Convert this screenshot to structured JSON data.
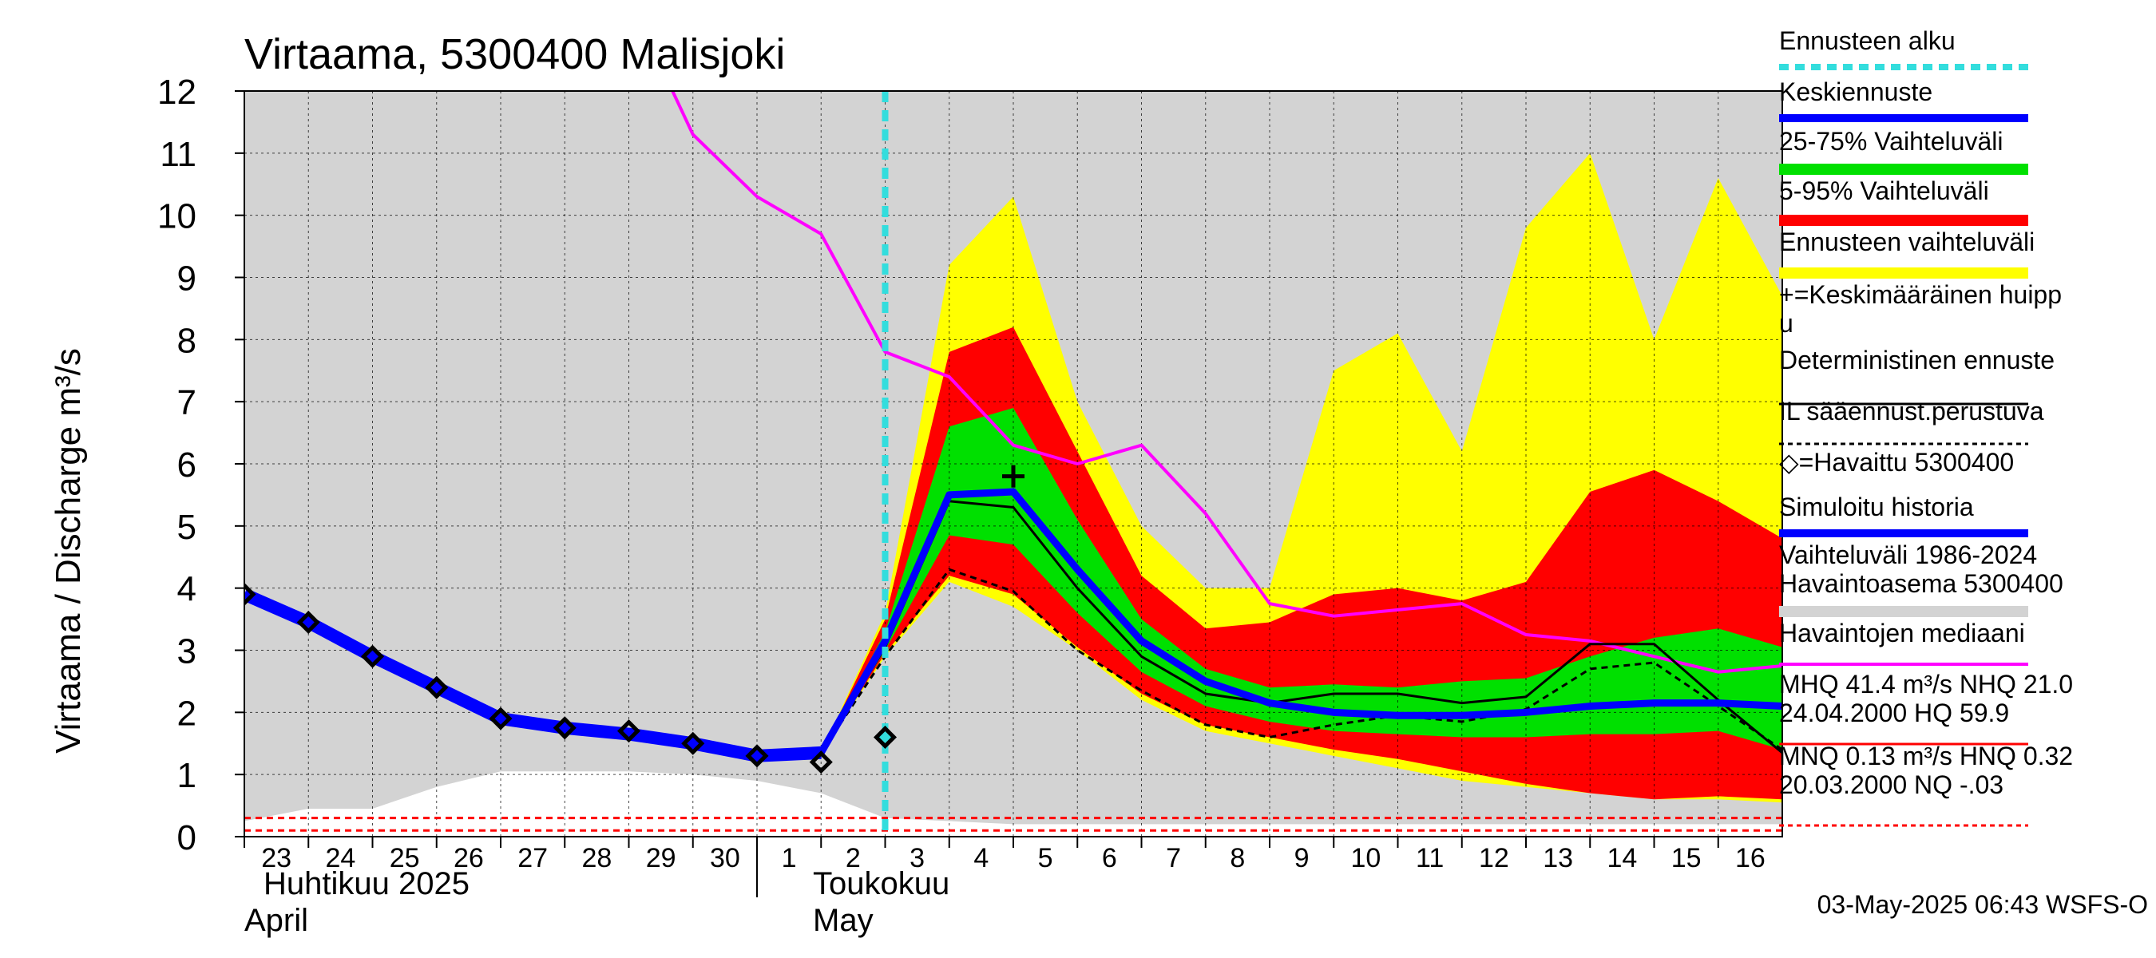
{
  "chart_data": {
    "type": "line",
    "title": "Virtaama, 5300400 Malisjoki",
    "ylabel": "Virtaama / Discharge    m³/s",
    "ylim": [
      0,
      12
    ],
    "yticks": [
      "0",
      "1",
      "2",
      "3",
      "4",
      "5",
      "6",
      "7",
      "8",
      "9",
      "10",
      "11",
      "12"
    ],
    "grid": true,
    "legend_position": "right",
    "x_tick_labels": [
      "23",
      "24",
      "25",
      "26",
      "27",
      "28",
      "29",
      "30",
      "1",
      "2",
      "3",
      "4",
      "5",
      "6",
      "7",
      "8",
      "9",
      "10",
      "11",
      "12",
      "13",
      "14",
      "15",
      "16"
    ],
    "month_labels": {
      "april_fi": "Huhtikuu  2025",
      "april_en": "April",
      "may_fi": "Toukokuu",
      "may_en": "May"
    },
    "x_day_index_note": "index 0 = 23 Apr, index 10 = 3 May",
    "forecast_start_index": 10,
    "series": {
      "history_range_upper": [
        12.0,
        12.0,
        12.0,
        12.0,
        12.0,
        12.0,
        12.0,
        12.0,
        12.0,
        12.0,
        12.0,
        12.0,
        12.0,
        12.0,
        12.0,
        12.0,
        12.0,
        12.0,
        12.0,
        12.0,
        12.0,
        12.0,
        12.0,
        12.0,
        12.0
      ],
      "history_range_lower": [
        0.25,
        0.45,
        0.45,
        0.8,
        1.05,
        1.05,
        1.05,
        1.0,
        0.9,
        0.7,
        0.3,
        0.25,
        0.2,
        0.2,
        0.2,
        0.2,
        0.2,
        0.2,
        0.2,
        0.2,
        0.2,
        0.2,
        0.2,
        0.2,
        0.2
      ],
      "ens_max": [
        null,
        null,
        null,
        null,
        null,
        null,
        null,
        null,
        null,
        1.35,
        3.6,
        9.2,
        10.3,
        7.0,
        5.0,
        4.0,
        4.0,
        7.5,
        8.1,
        6.2,
        9.8,
        11.0,
        8.0,
        10.6,
        8.7
      ],
      "ens_min": [
        null,
        null,
        null,
        null,
        null,
        null,
        null,
        null,
        null,
        1.35,
        2.9,
        4.1,
        3.7,
        3.0,
        2.2,
        1.7,
        1.5,
        1.3,
        1.1,
        0.9,
        0.8,
        0.7,
        0.6,
        0.6,
        0.55
      ],
      "p95": [
        null,
        null,
        null,
        null,
        null,
        null,
        null,
        null,
        null,
        1.35,
        3.5,
        7.8,
        8.2,
        6.2,
        4.2,
        3.35,
        3.45,
        3.9,
        4.0,
        3.8,
        4.1,
        5.55,
        5.9,
        5.4,
        4.8
      ],
      "p5": [
        null,
        null,
        null,
        null,
        null,
        null,
        null,
        null,
        null,
        1.35,
        2.95,
        4.2,
        3.9,
        3.05,
        2.3,
        1.8,
        1.6,
        1.4,
        1.25,
        1.05,
        0.85,
        0.7,
        0.6,
        0.65,
        0.6
      ],
      "p75": [
        null,
        null,
        null,
        null,
        null,
        null,
        null,
        null,
        null,
        1.35,
        3.3,
        6.6,
        6.9,
        5.1,
        3.5,
        2.7,
        2.4,
        2.45,
        2.4,
        2.5,
        2.55,
        2.9,
        3.2,
        3.35,
        3.05
      ],
      "p25": [
        null,
        null,
        null,
        null,
        null,
        null,
        null,
        null,
        null,
        1.35,
        3.0,
        4.85,
        4.7,
        3.6,
        2.65,
        2.1,
        1.85,
        1.7,
        1.65,
        1.6,
        1.6,
        1.65,
        1.65,
        1.7,
        1.4
      ],
      "mean_forecast": [
        null,
        null,
        null,
        null,
        null,
        null,
        null,
        null,
        null,
        1.35,
        3.15,
        5.5,
        5.55,
        4.3,
        3.15,
        2.5,
        2.15,
        2.0,
        1.95,
        1.95,
        2.0,
        2.1,
        2.15,
        2.15,
        2.1
      ],
      "deterministic": [
        null,
        null,
        null,
        null,
        null,
        null,
        null,
        null,
        null,
        1.35,
        3.05,
        5.4,
        5.3,
        4.0,
        2.9,
        2.3,
        2.15,
        2.3,
        2.3,
        2.15,
        2.25,
        3.1,
        3.1,
        2.2,
        1.35
      ],
      "il_based": [
        null,
        null,
        null,
        null,
        null,
        null,
        null,
        null,
        null,
        1.35,
        2.9,
        4.3,
        3.95,
        3.0,
        2.35,
        1.8,
        1.6,
        1.8,
        1.95,
        1.85,
        2.05,
        2.7,
        2.8,
        2.1,
        1.4
      ],
      "median_obs": [
        null,
        null,
        null,
        null,
        null,
        null,
        13.5,
        11.3,
        10.3,
        9.7,
        7.8,
        7.4,
        6.3,
        6.0,
        6.3,
        5.2,
        3.75,
        3.55,
        3.65,
        3.75,
        3.25,
        3.15,
        2.9,
        2.65,
        2.75
      ],
      "simulated_history": [
        3.9,
        3.45,
        2.9,
        2.4,
        1.9,
        1.75,
        1.65,
        1.5,
        1.3,
        1.35,
        null,
        null,
        null,
        null,
        null,
        null,
        null,
        null,
        null,
        null,
        null,
        null,
        null,
        null,
        null
      ],
      "observed_x": [
        0,
        1,
        2,
        3,
        4,
        5,
        6,
        7,
        8,
        9,
        10
      ],
      "observed": [
        3.9,
        3.45,
        2.9,
        2.4,
        1.9,
        1.75,
        1.7,
        1.5,
        1.3,
        1.2,
        1.6
      ],
      "mean_peak_x": 12,
      "mean_peak": 5.8,
      "mhq_line": 0.3,
      "mnq_line": 0.1
    },
    "colors": {
      "history_range": "#d3d3d3",
      "ens_range": "#ffff00",
      "p5_95": "#ff0000",
      "p25_75": "#00e000",
      "mean": "#0000ff",
      "deterministic": "#000000",
      "median_obs": "#ff00ff",
      "forecast_start": "#33dddd",
      "mhq": "#ff0000",
      "mnq": "#ff0000"
    }
  },
  "legend": [
    {
      "label": "Ennusteen alku",
      "style": "dashed-cyan"
    },
    {
      "label": "Keskiennuste",
      "style": "blue-line"
    },
    {
      "label": "25-75% Vaihteluväli",
      "style": "green-bar"
    },
    {
      "label": "5-95% Vaihteluväli",
      "style": "red-bar"
    },
    {
      "label": "Ennusteen vaihteluväli",
      "style": "yellow-bar"
    },
    {
      "label": "+=Keskimääräinen huipp",
      "label2": "u",
      "style": "none"
    },
    {
      "label": "Deterministinen ennuste",
      "style": "black-line"
    },
    {
      "label": "IL sääennust.perustuva",
      "style": "black-dashed"
    },
    {
      "label": "◇=Havaittu 5300400",
      "style": "none"
    },
    {
      "label": "Simuloitu historia",
      "style": "blue-line"
    },
    {
      "label": "Vaihteluväli 1986-2024",
      "label2": " Havaintoasema 5300400",
      "style": "gray-bar"
    },
    {
      "label": "Havaintojen mediaani",
      "style": "magenta-line"
    },
    {
      "label": "MHQ 41.4 m³/s NHQ 21.0",
      "label2": "24.04.2000 HQ 59.9",
      "style": "red-line"
    },
    {
      "label": "MNQ 0.13 m³/s HNQ 0.32",
      "label2": "20.03.2000 NQ -.03",
      "style": "red-dashed"
    }
  ],
  "footer": "03-May-2025 06:43 WSFS-O"
}
